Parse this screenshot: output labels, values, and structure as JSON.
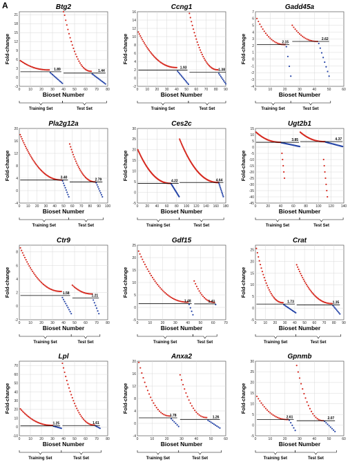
{
  "panel_label": "A",
  "colors": {
    "red": "#d62a20",
    "blue": "#2746a8",
    "grid": "#d8d8d8",
    "line": "#000000"
  },
  "common": {
    "xlabel": "Bioset Number",
    "ylabel": "Fold-change",
    "training_label": "Training Set",
    "test_label": "Test Set"
  },
  "chart_data": [
    {
      "type": "scatter",
      "title": "Btg2",
      "xlim": [
        0,
        80
      ],
      "ylim": [
        -3,
        22
      ],
      "xticks": [
        0,
        10,
        20,
        30,
        40,
        50,
        60,
        70,
        80
      ],
      "yticks": [
        -3,
        0,
        3,
        6,
        9,
        12,
        15,
        18,
        21
      ],
      "grid": true,
      "x_split": 39,
      "training": {
        "n": 39,
        "red_n": 27,
        "start": 5.0,
        "end": -2.0,
        "mean": 1.89
      },
      "test": {
        "n": 39,
        "red_n": 26,
        "start": 22.0,
        "end": -2.2,
        "mean": 1.44
      },
      "outliers": []
    },
    {
      "type": "scatter",
      "title": "Ccng1",
      "xlim": [
        0,
        90
      ],
      "ylim": [
        -2,
        16
      ],
      "xticks": [
        0,
        10,
        20,
        30,
        40,
        50,
        60,
        70,
        80,
        90
      ],
      "yticks": [
        -2,
        0,
        2,
        4,
        6,
        8,
        10,
        12,
        14,
        16
      ],
      "grid": true,
      "x_split": 52,
      "training": {
        "n": 52,
        "red_n": 40,
        "start": 10.5,
        "end": -1.5,
        "mean": 1.93
      },
      "test": {
        "n": 38,
        "red_n": 30,
        "start": 15.0,
        "end": -1.4,
        "mean": 1.38
      },
      "outliers": []
    },
    {
      "type": "scatter",
      "title": "Gadd45a",
      "xlim": [
        0,
        60
      ],
      "ylim": [
        -4,
        7
      ],
      "xticks": [
        0,
        10,
        20,
        30,
        40,
        50,
        60
      ],
      "yticks": [
        -4,
        -3,
        -2,
        -1,
        0,
        1,
        2,
        3,
        4,
        5,
        6,
        7
      ],
      "grid": true,
      "x_split": 24,
      "training": {
        "n": 24,
        "red_n": 20,
        "start": 6.0,
        "end": -2.5,
        "mean": 2.15
      },
      "test": {
        "n": 26,
        "red_n": 18,
        "start": 5.0,
        "end": -2.5,
        "mean": 2.62
      },
      "outliers": []
    },
    {
      "type": "scatter",
      "title": "Pla2g12a",
      "xlim": [
        0,
        100
      ],
      "ylim": [
        -4,
        20
      ],
      "xticks": [
        0,
        10,
        20,
        30,
        40,
        50,
        60,
        70,
        80,
        90,
        100
      ],
      "yticks": [
        -4,
        0,
        4,
        8,
        12,
        16,
        20
      ],
      "grid": true,
      "x_split": 56,
      "training": {
        "n": 56,
        "red_n": 48,
        "start": 18.0,
        "end": -2.0,
        "mean": 3.4
      },
      "test": {
        "n": 38,
        "red_n": 30,
        "start": 15.0,
        "end": -2.0,
        "mean": 2.79
      },
      "outliers": []
    },
    {
      "type": "scatter",
      "title": "Ces2c",
      "xlim": [
        0,
        180
      ],
      "ylim": [
        -5,
        30
      ],
      "xticks": [
        0,
        20,
        40,
        60,
        80,
        100,
        120,
        140,
        160,
        180
      ],
      "yticks": [
        -5,
        0,
        5,
        10,
        15,
        20,
        25,
        30
      ],
      "grid": true,
      "x_split": 85,
      "training": {
        "n": 85,
        "red_n": 68,
        "start": 20.0,
        "end": -2.0,
        "mean": 4.22
      },
      "test": {
        "n": 90,
        "red_n": 80,
        "start": 25.0,
        "end": -2.0,
        "mean": 4.64
      },
      "outliers": []
    },
    {
      "type": "scatter",
      "title": "Ugt2b1",
      "xlim": [
        0,
        140
      ],
      "ylim": [
        -45,
        15
      ],
      "xticks": [
        0,
        20,
        40,
        60,
        80,
        100,
        120,
        140
      ],
      "yticks": [
        -45,
        -40,
        -35,
        -30,
        -25,
        -20,
        -15,
        -10,
        -5,
        0,
        5,
        10,
        15
      ],
      "grid": true,
      "x_split": 70,
      "training": {
        "n": 70,
        "red_n": 40,
        "start": 12.0,
        "end": 0.5,
        "mean": 3.85
      },
      "test": {
        "n": 68,
        "red_n": 40,
        "start": 12.0,
        "end": 0.5,
        "mean": 4.37
      },
      "outliers": [
        {
          "x": 42,
          "y": -5,
          "c": "red"
        },
        {
          "x": 43,
          "y": -10,
          "c": "red"
        },
        {
          "x": 44,
          "y": -15,
          "c": "red"
        },
        {
          "x": 45,
          "y": -20,
          "c": "red"
        },
        {
          "x": 46,
          "y": -25,
          "c": "red"
        },
        {
          "x": 108,
          "y": -10,
          "c": "red"
        },
        {
          "x": 109,
          "y": -15,
          "c": "red"
        },
        {
          "x": 110,
          "y": -20,
          "c": "red"
        },
        {
          "x": 111,
          "y": -25,
          "c": "red"
        },
        {
          "x": 112,
          "y": -30,
          "c": "red"
        },
        {
          "x": 113,
          "y": -35,
          "c": "red"
        },
        {
          "x": 114,
          "y": -40,
          "c": "red"
        }
      ]
    },
    {
      "type": "scatter",
      "title": "Ctr9",
      "xlim": [
        0,
        80
      ],
      "ylim": [
        -2,
        9
      ],
      "xticks": [
        0,
        10,
        20,
        30,
        40,
        50,
        60,
        70,
        80
      ],
      "yticks": [
        -2,
        0,
        2,
        4,
        6,
        8
      ],
      "grid": true,
      "x_split": 47,
      "training": {
        "n": 47,
        "red_n": 38,
        "start": 8.0,
        "end": -1.1,
        "mean": 1.58
      },
      "test": {
        "n": 25,
        "red_n": 19,
        "start": 2.5,
        "end": -1.1,
        "mean": 1.21
      },
      "outliers": []
    },
    {
      "type": "scatter",
      "title": "Gdf15",
      "xlim": [
        0,
        70
      ],
      "ylim": [
        -5,
        25
      ],
      "xticks": [
        0,
        10,
        20,
        30,
        40,
        50,
        60,
        70
      ],
      "yticks": [
        -5,
        0,
        5,
        10,
        15,
        20,
        25
      ],
      "grid": true,
      "x_split": 44,
      "training": {
        "n": 44,
        "red_n": 40,
        "start": 22.0,
        "end": -3.0,
        "mean": 1.48
      },
      "test": {
        "n": 18,
        "red_n": 17,
        "start": 10.0,
        "end": 0.5,
        "mean": 1.41
      },
      "outliers": []
    },
    {
      "type": "scatter",
      "title": "Crat",
      "xlim": [
        0,
        90
      ],
      "ylim": [
        -5,
        27
      ],
      "xticks": [
        0,
        10,
        20,
        30,
        40,
        50,
        60,
        70,
        80,
        90
      ],
      "yticks": [
        -5,
        0,
        5,
        10,
        15,
        20,
        25
      ],
      "grid": true,
      "x_split": 41,
      "training": {
        "n": 41,
        "red_n": 28,
        "start": 25.0,
        "end": -2.0,
        "mean": 1.73
      },
      "test": {
        "n": 45,
        "red_n": 37,
        "start": 18.0,
        "end": -2.5,
        "mean": 1.35
      },
      "outliers": []
    },
    {
      "type": "scatter",
      "title": "Lpl",
      "xlim": [
        0,
        80
      ],
      "ylim": [
        -10,
        75
      ],
      "xticks": [
        0,
        10,
        20,
        30,
        40,
        50,
        60,
        70,
        80
      ],
      "yticks": [
        -10,
        0,
        10,
        20,
        30,
        40,
        50,
        60,
        70
      ],
      "grid": true,
      "x_split": 38,
      "training": {
        "n": 38,
        "red_n": 30,
        "start": 20.0,
        "end": -1.5,
        "mean": 1.25
      },
      "test": {
        "n": 35,
        "red_n": 30,
        "start": 72.0,
        "end": -1.5,
        "mean": 1.61
      },
      "outliers": []
    },
    {
      "type": "scatter",
      "title": "Anxa2",
      "xlim": [
        0,
        60
      ],
      "ylim": [
        -4,
        20
      ],
      "xticks": [
        0,
        10,
        20,
        30,
        40,
        50,
        60
      ],
      "yticks": [
        -4,
        0,
        4,
        8,
        12,
        16,
        20
      ],
      "grid": true,
      "x_split": 28,
      "training": {
        "n": 28,
        "red_n": 22,
        "start": 19.0,
        "end": -1.0,
        "mean": 1.78
      },
      "test": {
        "n": 28,
        "red_n": 19,
        "start": 15.0,
        "end": -1.5,
        "mean": 1.26
      },
      "outliers": []
    },
    {
      "type": "scatter",
      "title": "Gpnmb",
      "xlim": [
        0,
        60
      ],
      "ylim": [
        -5,
        30
      ],
      "xticks": [
        0,
        10,
        20,
        30,
        40,
        50,
        60
      ],
      "yticks": [
        -5,
        0,
        5,
        10,
        15,
        20,
        25,
        30
      ],
      "grid": true,
      "x_split": 27,
      "training": {
        "n": 27,
        "red_n": 22,
        "start": 13.5,
        "end": -2.5,
        "mean": 2.61
      },
      "test": {
        "n": 27,
        "red_n": 19,
        "start": 28.0,
        "end": -3.0,
        "mean": 2.07
      },
      "outliers": []
    }
  ]
}
